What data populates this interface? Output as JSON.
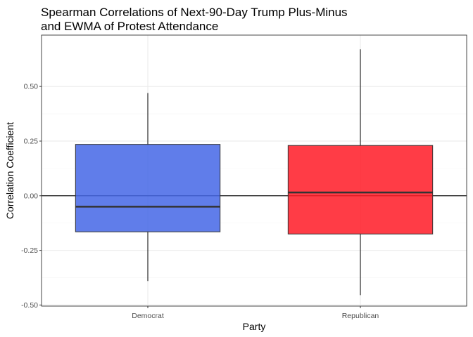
{
  "chart_data": {
    "type": "boxplot",
    "title_lines": [
      "Spearman Correlations of Next-90-Day Trump Plus-Minus",
      "and EWMA of Protest Attendance"
    ],
    "xlabel": "Party",
    "ylabel": "Correlation Coefficient",
    "categories": [
      "Democrat",
      "Republican"
    ],
    "boxes": [
      {
        "category": "Democrat",
        "min": -0.39,
        "q1": -0.165,
        "median": -0.05,
        "q3": 0.235,
        "max": 0.47,
        "color": "#4466e6"
      },
      {
        "category": "Republican",
        "min": -0.455,
        "q1": -0.175,
        "median": 0.015,
        "q3": 0.23,
        "max": 0.67,
        "color": "#ff1a26"
      }
    ],
    "yticks": [
      -0.5,
      -0.25,
      0.0,
      0.25,
      0.5
    ],
    "ytick_labels": [
      "-0.50",
      "-0.25",
      "0.00",
      "0.25",
      "0.50"
    ],
    "ylim": [
      -0.505,
      0.735
    ],
    "reference_line_y": 0,
    "grid": true,
    "legend": "none",
    "theme": {
      "panel_border": "#333333",
      "grid_major": "#ebebeb",
      "grid_minor": "#f5f5f5",
      "box_outline": "#333333"
    }
  }
}
